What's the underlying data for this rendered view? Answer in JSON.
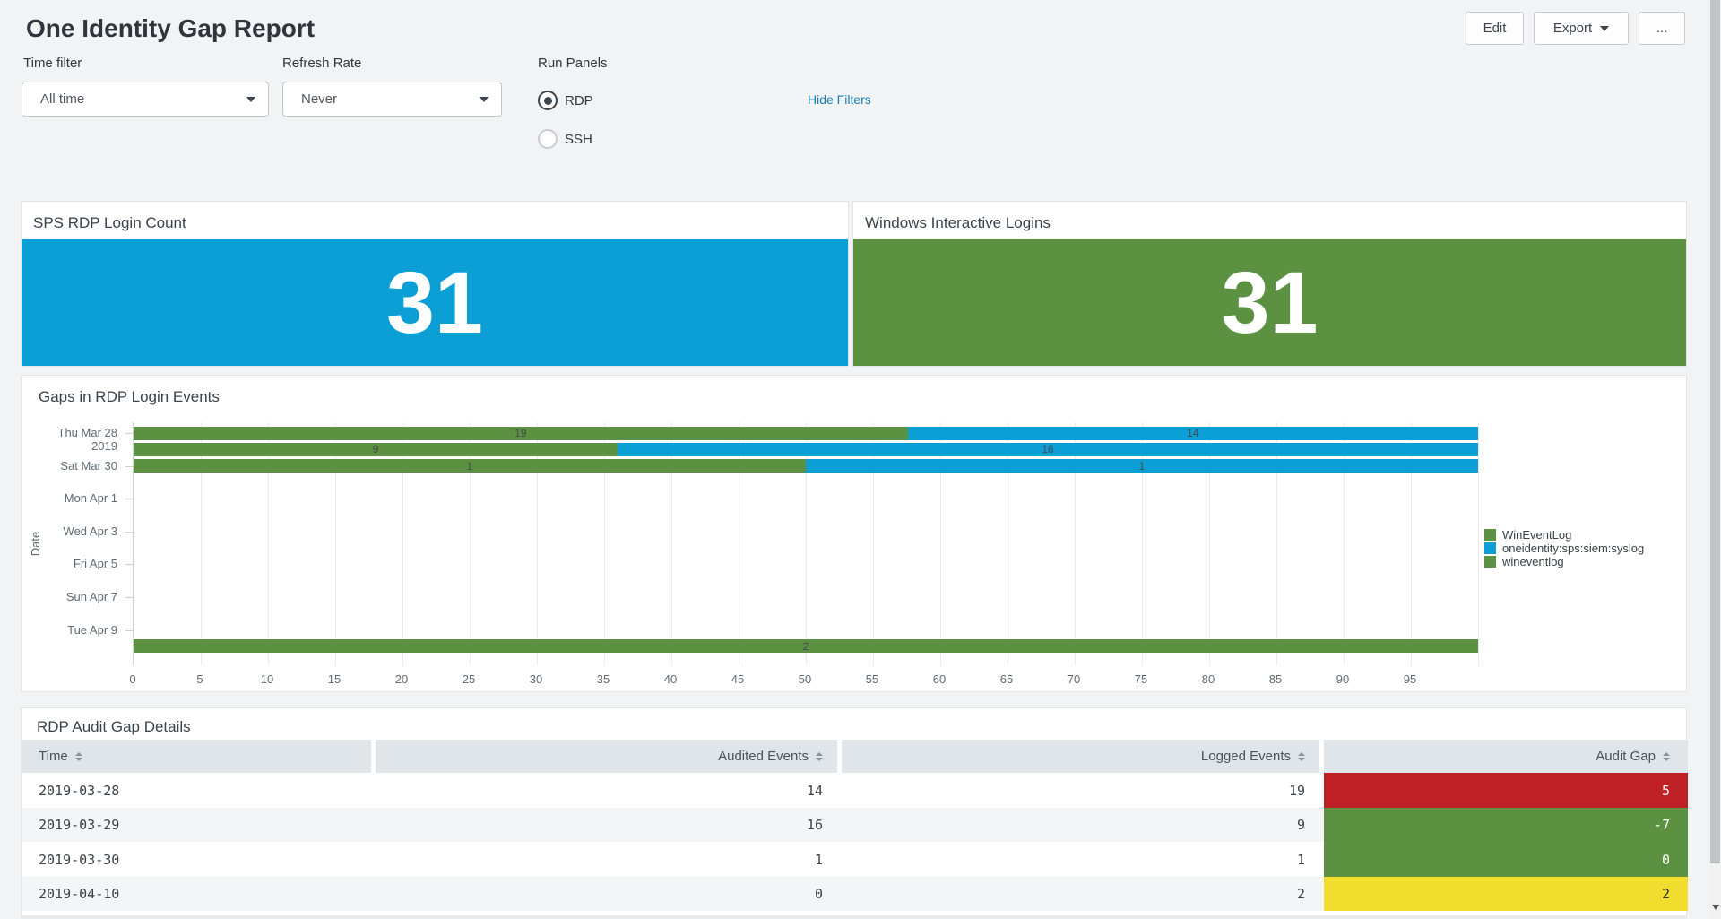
{
  "page": {
    "title": "One Identity Gap Report"
  },
  "header": {
    "edit_label": "Edit",
    "export_label": "Export",
    "more_label": "..."
  },
  "filters": {
    "time_filter": {
      "label": "Time filter",
      "value": "All time"
    },
    "refresh_rate": {
      "label": "Refresh Rate",
      "value": "Never"
    },
    "run_panels": {
      "label": "Run Panels",
      "options": [
        {
          "label": "RDP",
          "selected": true
        },
        {
          "label": "SSH",
          "selected": false
        }
      ]
    },
    "hide_filters_label": "Hide Filters"
  },
  "single_values": [
    {
      "title": "SPS RDP Login Count",
      "value": "31",
      "color": "#0b9fd6"
    },
    {
      "title": "Windows Interactive Logins",
      "value": "31",
      "color": "#5b9140"
    }
  ],
  "chart_data": {
    "type": "bar",
    "orientation": "horizontal",
    "stacking": "percent",
    "title": "Gaps in RDP Login Events",
    "ylabel": "Date",
    "xlabel": "",
    "xlim": [
      0,
      100
    ],
    "grid": "vertical",
    "legend_position": "right",
    "x_ticks": [
      "0",
      "5",
      "10",
      "15",
      "20",
      "25",
      "30",
      "35",
      "40",
      "45",
      "50",
      "55",
      "60",
      "65",
      "70",
      "75",
      "80",
      "85",
      "90",
      "95"
    ],
    "y_axis_ticks": [
      {
        "day_index": 0,
        "lines": [
          "Thu Mar 28",
          "2019"
        ]
      },
      {
        "day_index": 2,
        "lines": [
          "Sat Mar 30"
        ]
      },
      {
        "day_index": 4,
        "lines": [
          "Mon Apr 1"
        ]
      },
      {
        "day_index": 6,
        "lines": [
          "Wed Apr 3"
        ]
      },
      {
        "day_index": 8,
        "lines": [
          "Fri Apr 5"
        ]
      },
      {
        "day_index": 10,
        "lines": [
          "Sun Apr 7"
        ]
      },
      {
        "day_index": 12,
        "lines": [
          "Tue Apr 9"
        ]
      }
    ],
    "series": [
      {
        "name": "WinEventLog",
        "color": "#5b9140"
      },
      {
        "name": "oneidentity:sps:siem:syslog",
        "color": "#0b9fd6"
      },
      {
        "name": "wineventlog",
        "color": "#5b9140"
      }
    ],
    "bars": [
      {
        "day_index": 0,
        "date": "2019-03-28",
        "segments": [
          {
            "series": "WinEventLog",
            "value": 19
          },
          {
            "series": "oneidentity:sps:siem:syslog",
            "value": 14
          }
        ]
      },
      {
        "day_index": 1,
        "date": "2019-03-29",
        "segments": [
          {
            "series": "WinEventLog",
            "value": 9
          },
          {
            "series": "oneidentity:sps:siem:syslog",
            "value": 16
          }
        ]
      },
      {
        "day_index": 2,
        "date": "2019-03-30",
        "segments": [
          {
            "series": "WinEventLog",
            "value": 1
          },
          {
            "series": "oneidentity:sps:siem:syslog",
            "value": 1
          }
        ]
      },
      {
        "day_index": 13,
        "date": "2019-04-10",
        "segments": [
          {
            "series": "wineventlog",
            "value": 2
          }
        ]
      }
    ]
  },
  "table": {
    "title": "RDP Audit Gap Details",
    "columns": [
      {
        "label": "Time",
        "align": "left",
        "sortable": true
      },
      {
        "label": "Audited Events",
        "align": "right",
        "sortable": true
      },
      {
        "label": "Logged Events",
        "align": "right",
        "sortable": true
      },
      {
        "label": "Audit Gap",
        "align": "right",
        "sortable": true
      }
    ],
    "rows": [
      {
        "cells": [
          "2019-03-28",
          "14",
          "19",
          "5"
        ],
        "gap_bg": "#be2026",
        "gap_fg": "#ffffff"
      },
      {
        "cells": [
          "2019-03-29",
          "16",
          "9",
          "-7"
        ],
        "gap_bg": "#5b9140",
        "gap_fg": "#ffffff"
      },
      {
        "cells": [
          "2019-03-30",
          "1",
          "1",
          "0"
        ],
        "gap_bg": "#5b9140",
        "gap_fg": "#ffffff"
      },
      {
        "cells": [
          "2019-04-10",
          "0",
          "2",
          "2"
        ],
        "gap_bg": "#f1dd2d",
        "gap_fg": "#333333"
      }
    ]
  },
  "colors": {
    "page_bg": "#f1f3f4",
    "accent_blue": "#0b9fd6",
    "accent_green": "#5b9140",
    "status_red": "#be2026",
    "status_yellow": "#f1dd2d",
    "table_header_bg": "#e0e5e9",
    "link_blue": "#1a7eb5"
  }
}
